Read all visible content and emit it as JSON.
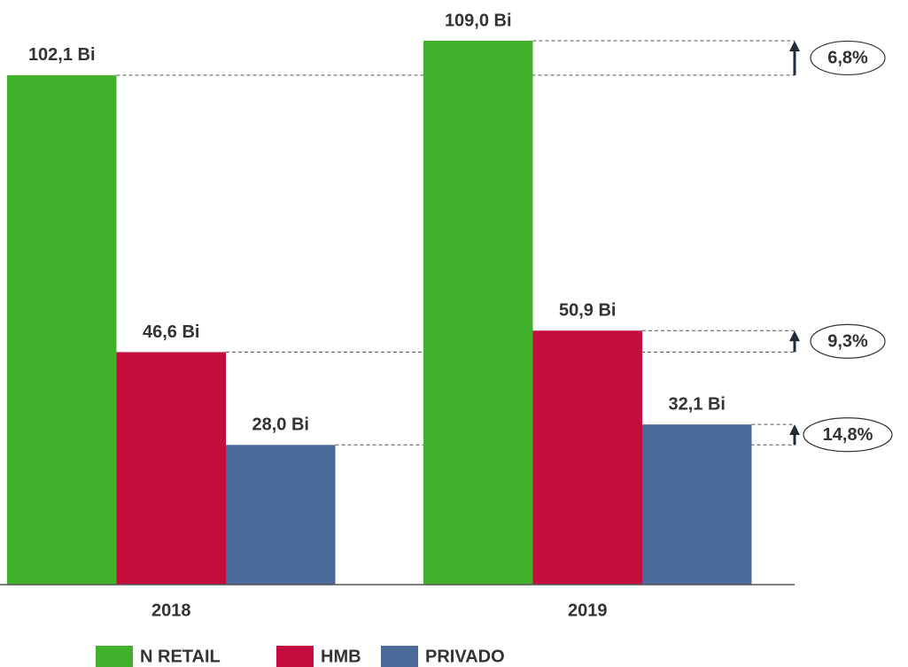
{
  "chart_data": {
    "type": "bar",
    "categories": [
      "2018",
      "2019"
    ],
    "series": [
      {
        "name": "N RETAIL",
        "color": "#41b02b",
        "values": [
          102.1,
          109.0
        ],
        "value_labels": [
          "102,1 Bi",
          "109,0 Bi"
        ],
        "growth": "6,8%"
      },
      {
        "name": "HMB",
        "color": "#c40d3c",
        "values": [
          46.6,
          50.9
        ],
        "value_labels": [
          "46,6 Bi",
          "50,9 Bi"
        ],
        "growth": "9,3%"
      },
      {
        "name": "PRIVADO",
        "color": "#4a6a9a",
        "values": [
          28.0,
          32.1
        ],
        "value_labels": [
          "28,0 Bi",
          "32,1 Bi"
        ],
        "growth": "14,8%"
      }
    ],
    "ylim": [
      0,
      109
    ]
  }
}
